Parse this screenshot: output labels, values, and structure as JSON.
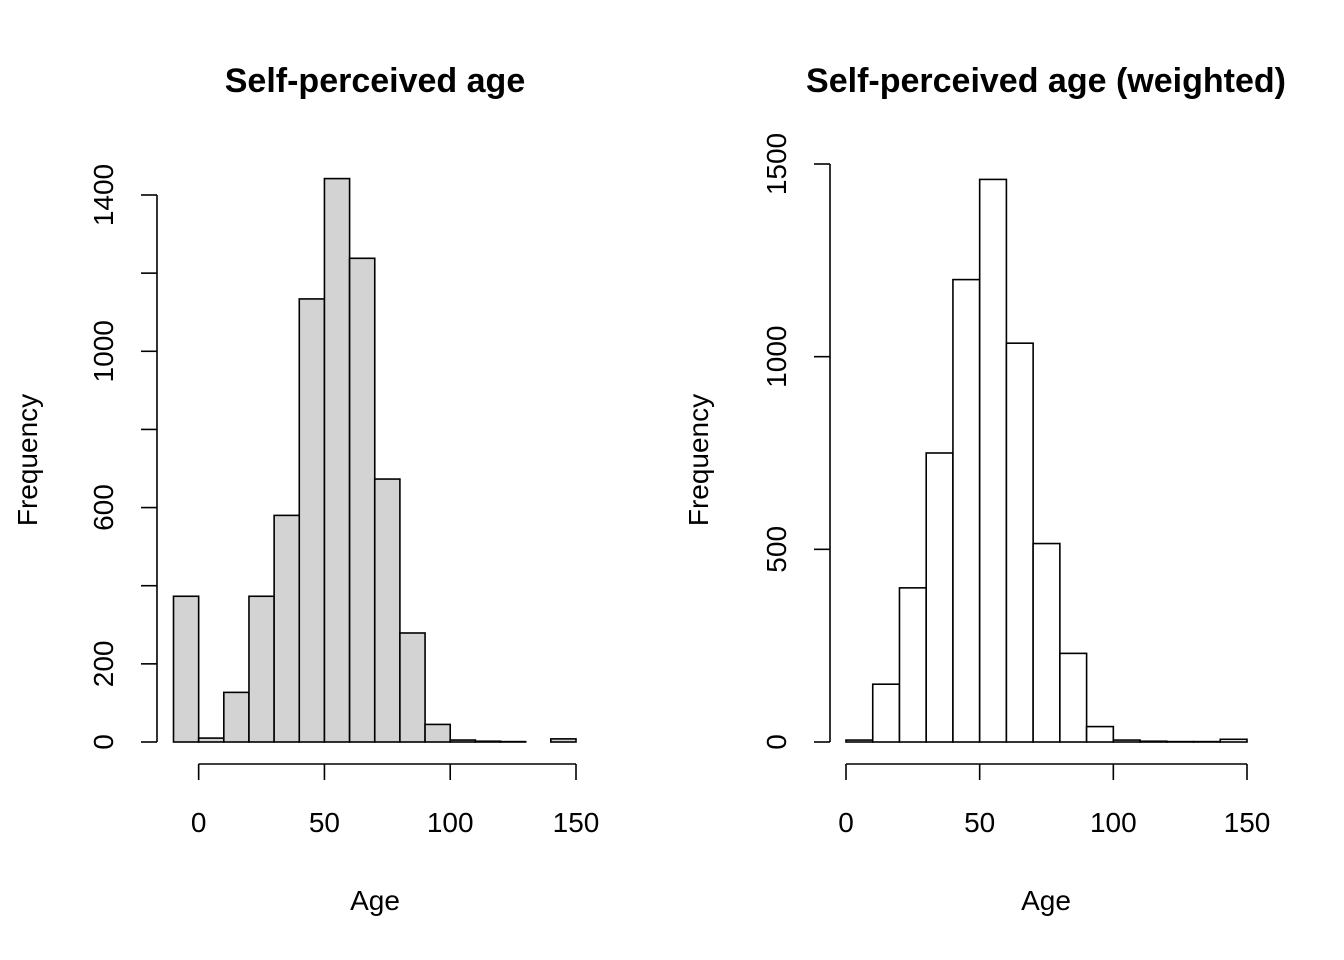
{
  "chart_data": [
    {
      "type": "bar",
      "subtype": "histogram",
      "title": "Self-perceived age",
      "xlabel": "Age",
      "ylabel": "Frequency",
      "bar_fill": "#d3d3d3",
      "bar_stroke": "#000000",
      "xlim": [
        -10,
        150
      ],
      "ylim": [
        0,
        1400
      ],
      "x_ticks": [
        0,
        50,
        100,
        150
      ],
      "y_ticks": [
        0,
        200,
        400,
        600,
        800,
        1000,
        1200,
        1400
      ],
      "y_tick_labels": [
        "0",
        "200",
        "",
        "600",
        "",
        "1000",
        "",
        "1400"
      ],
      "bins": [
        {
          "x0": -10,
          "x1": 0,
          "count": 373
        },
        {
          "x0": 0,
          "x1": 10,
          "count": 10
        },
        {
          "x0": 10,
          "x1": 20,
          "count": 127
        },
        {
          "x0": 20,
          "x1": 30,
          "count": 373
        },
        {
          "x0": 30,
          "x1": 40,
          "count": 580
        },
        {
          "x0": 40,
          "x1": 50,
          "count": 1134
        },
        {
          "x0": 50,
          "x1": 60,
          "count": 1442
        },
        {
          "x0": 60,
          "x1": 70,
          "count": 1238
        },
        {
          "x0": 70,
          "x1": 80,
          "count": 673
        },
        {
          "x0": 80,
          "x1": 90,
          "count": 279
        },
        {
          "x0": 90,
          "x1": 100,
          "count": 45
        },
        {
          "x0": 100,
          "x1": 110,
          "count": 5
        },
        {
          "x0": 110,
          "x1": 120,
          "count": 2
        },
        {
          "x0": 120,
          "x1": 130,
          "count": 1
        },
        {
          "x0": 130,
          "x1": 140,
          "count": 0
        },
        {
          "x0": 140,
          "x1": 150,
          "count": 8
        }
      ]
    },
    {
      "type": "bar",
      "subtype": "histogram",
      "title": "Self-perceived age (weighted)",
      "xlabel": "Age",
      "ylabel": "Frequency",
      "bar_fill": "#ffffff",
      "bar_stroke": "#000000",
      "xlim": [
        0,
        150
      ],
      "ylim": [
        0,
        1500
      ],
      "x_ticks": [
        0,
        50,
        100,
        150
      ],
      "y_ticks": [
        0,
        500,
        1000,
        1500
      ],
      "y_tick_labels": [
        "0",
        "500",
        "1000",
        "1500"
      ],
      "bins": [
        {
          "x0": 0,
          "x1": 10,
          "count": 5
        },
        {
          "x0": 10,
          "x1": 20,
          "count": 150
        },
        {
          "x0": 20,
          "x1": 30,
          "count": 400
        },
        {
          "x0": 30,
          "x1": 40,
          "count": 750
        },
        {
          "x0": 40,
          "x1": 50,
          "count": 1200
        },
        {
          "x0": 50,
          "x1": 60,
          "count": 1460
        },
        {
          "x0": 60,
          "x1": 70,
          "count": 1035
        },
        {
          "x0": 70,
          "x1": 80,
          "count": 515
        },
        {
          "x0": 80,
          "x1": 90,
          "count": 230
        },
        {
          "x0": 90,
          "x1": 100,
          "count": 40
        },
        {
          "x0": 100,
          "x1": 110,
          "count": 5
        },
        {
          "x0": 110,
          "x1": 120,
          "count": 2
        },
        {
          "x0": 120,
          "x1": 130,
          "count": 1
        },
        {
          "x0": 130,
          "x1": 140,
          "count": 1
        },
        {
          "x0": 140,
          "x1": 150,
          "count": 7
        }
      ]
    }
  ]
}
